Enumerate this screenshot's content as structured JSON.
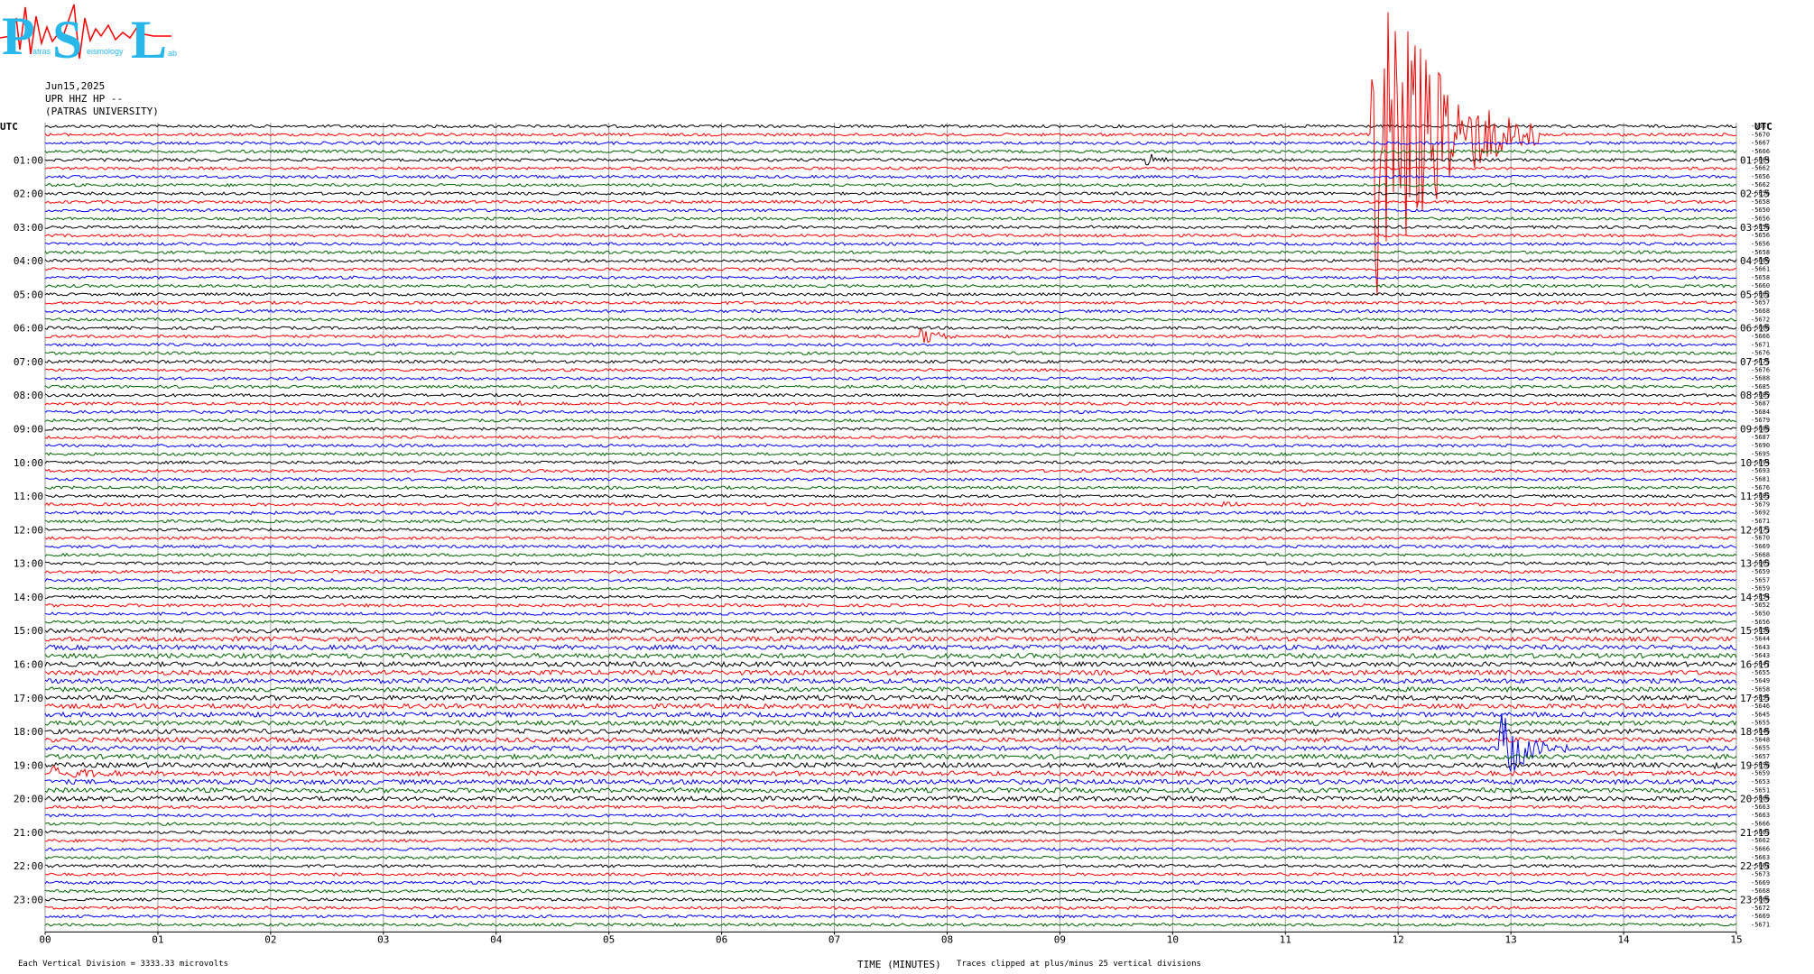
{
  "header": {
    "date": "Jun15,2025",
    "station": "UPR HHZ HP --",
    "institution": "(PATRAS UNIVERSITY)"
  },
  "logo": {
    "letters": [
      "P",
      "S",
      "L"
    ],
    "small_text": [
      "atras",
      "eismology",
      "ab"
    ],
    "color": "#29b6e8",
    "trace_color": "#ff0000"
  },
  "footer": {
    "scale_note": "Each Vertical Division = 3333.33 microvolts",
    "x_title": "TIME (MINUTES)",
    "clip_note": "Traces clipped at plus/minus 25 vertical divisions"
  },
  "chart_data": {
    "type": "line",
    "title": "",
    "xlabel": "TIME (MINUTES)",
    "ylabel": "UTC",
    "xlim": [
      0,
      15
    ],
    "x_ticks": [
      "00",
      "01",
      "02",
      "03",
      "04",
      "05",
      "06",
      "07",
      "08",
      "09",
      "10",
      "11",
      "12",
      "13",
      "14",
      "15"
    ],
    "left_axis_label": "UTC",
    "right_axis_label": "UTC",
    "left_hour_labels": [
      "01:00",
      "02:00",
      "03:00",
      "04:00",
      "05:00",
      "06:00",
      "07:00",
      "08:00",
      "09:00",
      "10:00",
      "11:00",
      "12:00",
      "13:00",
      "14:00",
      "15:00",
      "16:00",
      "17:00",
      "18:00",
      "19:00",
      "20:00",
      "21:00",
      "22:00",
      "23:00"
    ],
    "right_hour_labels": [
      "01:15",
      "02:15",
      "03:15",
      "04:15",
      "05:15",
      "06:15",
      "07:15",
      "08:15",
      "09:15",
      "10:15",
      "11:15",
      "12:15",
      "13:15",
      "14:15",
      "15:15",
      "16:15",
      "17:15",
      "18:15",
      "19:15",
      "20:15",
      "21:15",
      "22:15",
      "23:15"
    ],
    "trace_colors": [
      "#000000",
      "#ff0000",
      "#0000ff",
      "#006400"
    ],
    "trace_count": 96,
    "minutes_per_trace": 15,
    "grid": true,
    "trace_offsets": [
      "-5667",
      "-5670",
      "-5667",
      "-5666",
      "-5664",
      "-5662",
      "-5656",
      "-5662",
      "-5656",
      "-5658",
      "-5650",
      "-5656",
      "-5658",
      "-5656",
      "-5656",
      "-5658",
      "-5660",
      "-5661",
      "-5658",
      "-5660",
      "-5662",
      "-5657",
      "-5668",
      "-5672",
      "-5668",
      "-5666",
      "-5671",
      "-5676",
      "-5675",
      "-5676",
      "-5688",
      "-5685",
      "-5689",
      "-5687",
      "-5684",
      "-5679",
      "-5688",
      "-5687",
      "-5690",
      "-5695",
      "-5694",
      "-5693",
      "-5681",
      "-5676",
      "-5683",
      "-5679",
      "-5692",
      "-5671",
      "-5673",
      "-5670",
      "-5669",
      "-5668",
      "-5663",
      "-5659",
      "-5657",
      "-5659",
      "-5654",
      "-5652",
      "-5650",
      "-5656",
      "-5658",
      "-5644",
      "-5643",
      "-5643",
      "-5647",
      "-5655",
      "-5649",
      "-5658",
      "-5655",
      "-5646",
      "-5645",
      "-5655",
      "-5646",
      "-5648",
      "-5655",
      "-5657",
      "-5658",
      "-5659",
      "-5653",
      "-5651",
      "-5666",
      "-5663",
      "-5663",
      "-5666",
      "-5663",
      "-5662",
      "-5666",
      "-5663",
      "-5662",
      "-5673",
      "-5669",
      "-5668",
      "-5666",
      "-5672",
      "-5669",
      "-5671"
    ],
    "events": [
      {
        "trace": 1,
        "minute": 11.75,
        "amplitude": 25,
        "duration_min": 1.5,
        "note": "clipped"
      },
      {
        "trace": 4,
        "minute": 9.75,
        "amplitude": 1.2,
        "duration_min": 0.3
      },
      {
        "trace": 25,
        "minute": 7.75,
        "amplitude": 1.5,
        "duration_min": 0.4
      },
      {
        "trace": 33,
        "minute": 4.2,
        "amplitude": 0.5,
        "duration_min": 0.3
      },
      {
        "trace": 45,
        "minute": 10.4,
        "amplitude": 0.6,
        "duration_min": 0.4
      },
      {
        "trace": 66,
        "minute": 1.6,
        "amplitude": 0.4,
        "duration_min": 0.4
      },
      {
        "trace": 74,
        "minute": 12.9,
        "amplitude": 5.0,
        "duration_min": 0.6
      },
      {
        "trace": 77,
        "minute": 0.05,
        "amplitude": 1.4,
        "duration_min": 0.6
      },
      {
        "trace": 76,
        "minute": 14.8,
        "amplitude": 0.7,
        "duration_min": 0.2
      }
    ]
  }
}
